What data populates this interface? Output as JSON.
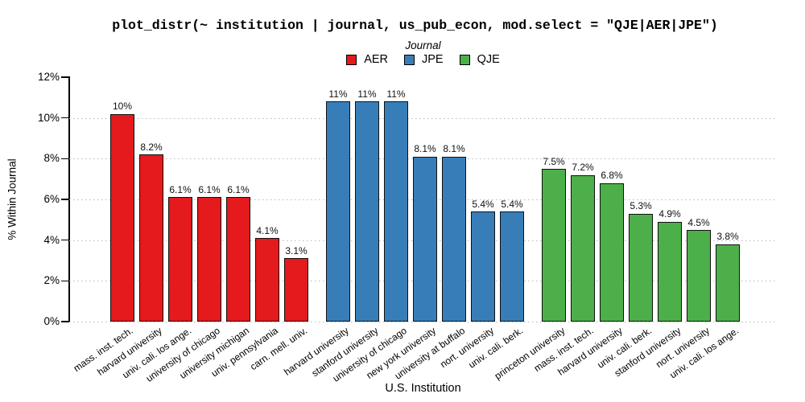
{
  "chart_data": {
    "type": "bar",
    "title": "plot_distr(~ institution | journal, us_pub_econ, mod.select = \"QJE|AER|JPE\")",
    "xlabel": "U.S. Institution",
    "ylabel": "% Within Journal",
    "legend_title": "Journal",
    "legend_position": "top-center",
    "ylim": [
      0,
      12
    ],
    "yticks": [
      0,
      2,
      4,
      6,
      8,
      10,
      12
    ],
    "ytick_labels": [
      "0%",
      "2%",
      "4%",
      "6%",
      "8%",
      "10%",
      "12%"
    ],
    "grid": "horizontal-dotted",
    "bar_border_color": "#111111",
    "series": [
      {
        "name": "AER",
        "color": "#E41A1C",
        "bars": [
          {
            "x": "mass. inst. tech.",
            "value": 10.2,
            "label": "10%"
          },
          {
            "x": "harvard university",
            "value": 8.2,
            "label": "8.2%"
          },
          {
            "x": "univ. cali. los ange.",
            "value": 6.1,
            "label": "6.1%"
          },
          {
            "x": "university of chicago",
            "value": 6.1,
            "label": "6.1%"
          },
          {
            "x": "university michigan",
            "value": 6.1,
            "label": "6.1%"
          },
          {
            "x": "univ. pennsylvania",
            "value": 4.1,
            "label": "4.1%"
          },
          {
            "x": "carn. mell. univ.",
            "value": 3.1,
            "label": "3.1%"
          }
        ]
      },
      {
        "name": "JPE",
        "color": "#377EB8",
        "bars": [
          {
            "x": "harvard university",
            "value": 10.8,
            "label": "11%"
          },
          {
            "x": "stanford university",
            "value": 10.8,
            "label": "11%"
          },
          {
            "x": "university of chicago",
            "value": 10.8,
            "label": "11%"
          },
          {
            "x": "new york university",
            "value": 8.1,
            "label": "8.1%"
          },
          {
            "x": "university at buffalo",
            "value": 8.1,
            "label": "8.1%"
          },
          {
            "x": "nort. university",
            "value": 5.4,
            "label": "5.4%"
          },
          {
            "x": "univ. cali. berk.",
            "value": 5.4,
            "label": "5.4%"
          }
        ]
      },
      {
        "name": "QJE",
        "color": "#4DAF4A",
        "bars": [
          {
            "x": "princeton university",
            "value": 7.5,
            "label": "7.5%"
          },
          {
            "x": "mass. inst. tech.",
            "value": 7.2,
            "label": "7.2%"
          },
          {
            "x": "harvard university",
            "value": 6.8,
            "label": "6.8%"
          },
          {
            "x": "univ. cali. berk.",
            "value": 5.3,
            "label": "5.3%"
          },
          {
            "x": "stanford university",
            "value": 4.9,
            "label": "4.9%"
          },
          {
            "x": "nort. university",
            "value": 4.5,
            "label": "4.5%"
          },
          {
            "x": "univ. cali. los ange.",
            "value": 3.8,
            "label": "3.8%"
          }
        ]
      }
    ]
  }
}
